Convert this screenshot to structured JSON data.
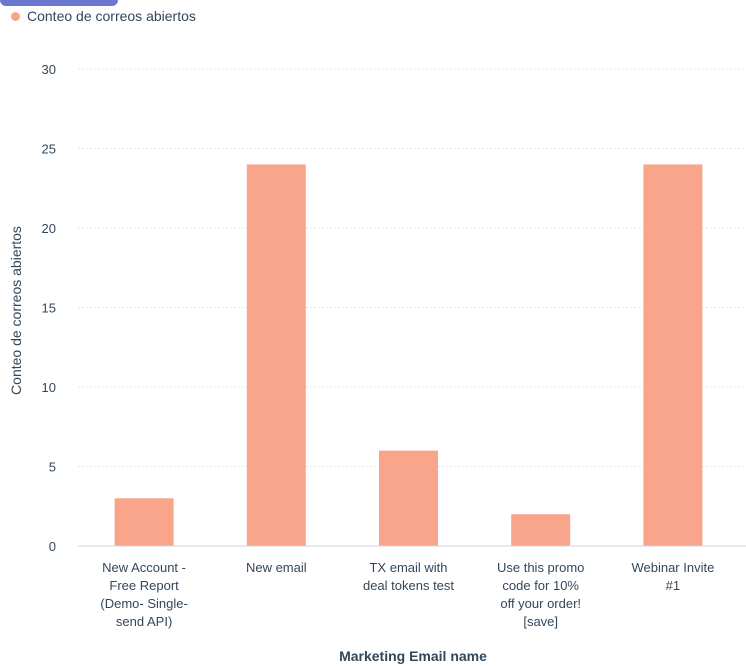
{
  "legend": {
    "label": "Conteo de correos abiertos",
    "color": "#f8a58c"
  },
  "chart_data": {
    "type": "bar",
    "title": "",
    "xlabel": "Marketing Email name",
    "ylabel": "Conteo de correos abiertos",
    "ylim": [
      0,
      30
    ],
    "yticks": [
      0,
      5,
      10,
      15,
      20,
      25,
      30
    ],
    "grid": true,
    "legend_position": "top-left",
    "bar_color": "#f8a58c",
    "categories": [
      [
        "New Account -",
        "Free Report",
        "(Demo- Single-",
        "send API)"
      ],
      [
        "New email"
      ],
      [
        "TX email with",
        "deal tokens test"
      ],
      [
        "Use this promo",
        "code for 10%",
        "off your order!",
        "[save]"
      ],
      [
        "Webinar Invite",
        "#1"
      ]
    ],
    "series": [
      {
        "name": "Conteo de correos abiertos",
        "values": [
          3,
          24,
          6,
          2,
          24
        ]
      }
    ]
  }
}
